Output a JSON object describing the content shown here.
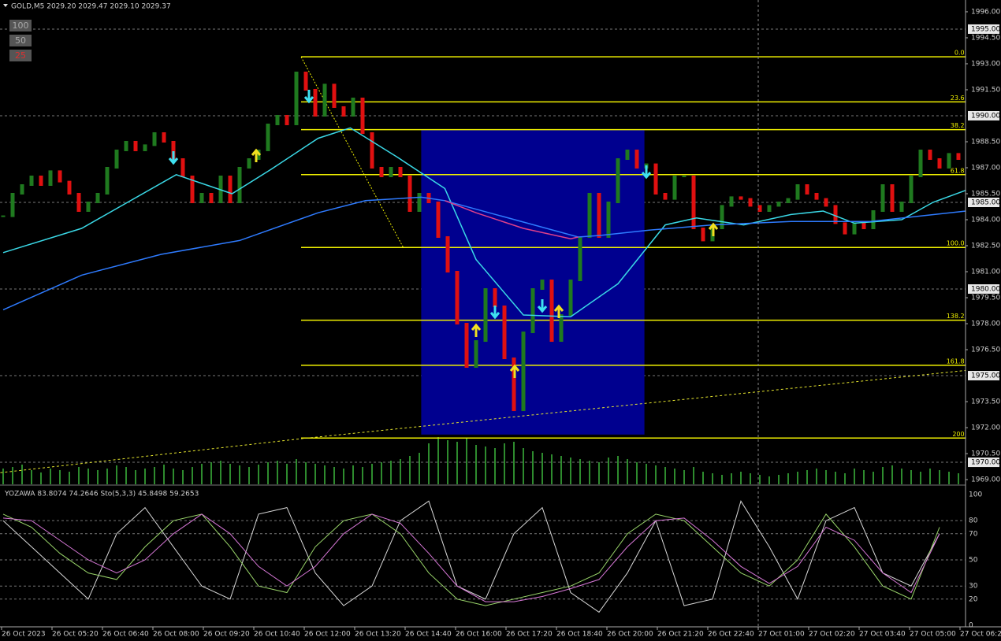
{
  "chart_data": {
    "type": "bar",
    "title": "GOLD,M5  2029.20 2029.47 2029.10 2029.37",
    "buttons": [
      "100",
      "50",
      "25"
    ],
    "ylim": [
      1968.73,
      1996.68
    ],
    "yticks": [
      {
        "value": 1996,
        "label": "1996.00"
      },
      {
        "value": 1994.5,
        "label": "1994.50"
      },
      {
        "value": 1993,
        "label": "1993.00"
      },
      {
        "value": 1991.5,
        "label": "1991.50"
      },
      {
        "value": 1988.5,
        "label": "1988.50"
      },
      {
        "value": 1987,
        "label": "1987.00"
      },
      {
        "value": 1985.5,
        "label": "1985.50"
      },
      {
        "value": 1984,
        "label": "1984.00"
      },
      {
        "value": 1982.5,
        "label": "1982.50"
      },
      {
        "value": 1981,
        "label": "1981.00"
      },
      {
        "value": 1979.5,
        "label": "1979.50"
      },
      {
        "value": 1978,
        "label": "1978.00"
      },
      {
        "value": 1976.5,
        "label": "1976.50"
      },
      {
        "value": 1973.5,
        "label": "1973.50"
      },
      {
        "value": 1972,
        "label": "1972.00"
      },
      {
        "value": 1970.5,
        "label": "1970.50"
      },
      {
        "value": 1969,
        "label": "1969.00"
      }
    ],
    "grid": [
      {
        "value": 1995,
        "label": "1995.00"
      },
      {
        "value": 1990,
        "label": "1990.00"
      },
      {
        "value": 1985,
        "label": "1985.00"
      },
      {
        "value": 1980,
        "label": "1980.00"
      },
      {
        "value": 1975,
        "label": "1975.00"
      },
      {
        "value": 1970,
        "label": "1970.00"
      }
    ],
    "xticks": [
      "26 Oct 2023",
      "26 Oct 05:20",
      "26 Oct 06:40",
      "26 Oct 08:00",
      "26 Oct 09:20",
      "26 Oct 10:40",
      "26 Oct 12:00",
      "26 Oct 13:20",
      "26 Oct 14:40",
      "26 Oct 16:00",
      "26 Oct 17:20",
      "26 Oct 18:40",
      "26 Oct 20:00",
      "26 Oct 21:20",
      "26 Oct 22:40",
      "27 Oct 01:00",
      "27 Oct 02:20",
      "27 Oct 03:40",
      "27 Oct 05:00",
      "27 Oct 06:20"
    ],
    "up_color": "#1f7a1f",
    "down_color": "#e01010",
    "values": [
      1984.2,
      1985.5,
      1986,
      1986.5,
      1986,
      1986.8,
      1986.2,
      1985.5,
      1984.5,
      1985,
      1985.5,
      1987,
      1988,
      1988.5,
      1988,
      1988.3,
      1989,
      1988.5,
      1987.5,
      1986.5,
      1985,
      1985.5,
      1985,
      1986.5,
      1985,
      1987,
      1987.5,
      1988,
      1989.5,
      1990,
      1989.5,
      1992.5,
      1991.5,
      1990,
      1991.8,
      1990.5,
      1990,
      1991,
      1989,
      1987,
      1986.5,
      1987,
      1986.5,
      1984.5,
      1985.5,
      1985,
      1983,
      1981,
      1978,
      1975.5,
      1977,
      1980,
      1979,
      1976,
      1973,
      1977.5,
      1980,
      1980.5,
      1977,
      1978.5,
      1980.5,
      1983,
      1985.5,
      1983,
      1985,
      1987.5,
      1988,
      1987,
      1987.2,
      1985.5,
      1985.2,
      1986.5,
      1986.5,
      1983.5,
      1982.8,
      1983.5,
      1984.8,
      1985.3,
      1985.2,
      1984.8,
      1984.5,
      1984.8,
      1985,
      1985.2,
      1986,
      1985.5,
      1985.2,
      1984.8,
      1983.8,
      1983.2,
      1983.8,
      1983.5,
      1984.5,
      1986,
      1984.5,
      1985,
      1986.5,
      1988,
      1987.5,
      1987,
      1987.8,
      1987.5
    ],
    "volume": [
      20,
      22,
      25,
      18,
      15,
      20,
      18,
      16,
      22,
      20,
      18,
      20,
      24,
      22,
      18,
      20,
      22,
      25,
      20,
      18,
      22,
      26,
      28,
      30,
      26,
      24,
      22,
      25,
      28,
      30,
      26,
      32,
      28,
      26,
      24,
      22,
      20,
      24,
      22,
      26,
      28,
      30,
      32,
      36,
      40,
      52,
      60,
      56,
      54,
      58,
      50,
      48,
      46,
      52,
      54,
      46,
      42,
      40,
      38,
      36,
      34,
      32,
      30,
      28,
      34,
      36,
      32,
      28,
      26,
      24,
      22,
      20,
      18,
      22,
      16,
      14,
      12,
      14,
      16,
      14,
      12,
      10,
      12,
      14,
      16,
      18,
      20,
      18,
      16,
      14,
      20,
      18,
      16,
      22,
      24,
      20,
      18,
      16,
      20,
      18,
      16,
      14
    ],
    "ma_series": [
      {
        "name": "fast",
        "color": "#3ad8e6",
        "x": [
          0,
          8.3,
          12.5,
          18.3,
          24.2,
          28.3,
          33.3,
          36.7,
          41.7,
          46.7,
          50,
          55,
          60,
          65,
          70,
          73.3,
          78.3,
          83.3,
          86.7,
          90,
          95,
          98.3,
          101.8
        ],
        "values": [
          1982.1,
          1983.5,
          1984.8,
          1986.6,
          1985.5,
          1986.9,
          1988.7,
          1989.3,
          1987.6,
          1985.8,
          1981.7,
          1978.5,
          1978.4,
          1980.3,
          1983.7,
          1984.1,
          1983.7,
          1984.3,
          1984.5,
          1983.8,
          1984,
          1985,
          1985.7
        ]
      },
      {
        "name": "slow",
        "color": "#2e7bff",
        "x": [
          0,
          8.3,
          16.7,
          25,
          33.3,
          38.3,
          44.2,
          46.7,
          60.8,
          63.3,
          68.3,
          75,
          83.3,
          91.7,
          101.8
        ],
        "values": [
          1978.8,
          1980.8,
          1982,
          1982.8,
          1984.4,
          1985.1,
          1985.3,
          1985.1,
          1983,
          1983.1,
          1983.4,
          1983.7,
          1983.9,
          1983.9,
          1984.5
        ]
      },
      {
        "name": "slow-down",
        "color": "#e0408a",
        "x": [
          46.7,
          50,
          55,
          60,
          60.8
        ],
        "values": [
          1985.1,
          1984.4,
          1983.5,
          1982.9,
          1983
        ]
      }
    ],
    "trend_line": {
      "x": [
        -0.3,
        31.5,
        101.8
      ],
      "values": [
        1969.4,
        1971.36,
        1975.3
      ],
      "color": "#e6e62e"
    },
    "fib_x": [
      31.5,
      101.8
    ],
    "fib_levels": [
      {
        "label": "0.0",
        "value": 1993.4
      },
      {
        "label": "23.6",
        "value": 1990.8
      },
      {
        "label": "38.2",
        "value": 1989.2
      },
      {
        "label": "61.8",
        "value": 1986.6
      },
      {
        "label": "100.0",
        "value": 1982.4
      },
      {
        "label": "138.2",
        "value": 1978.2
      },
      {
        "label": "161.8",
        "value": 1975.6
      },
      {
        "label": "200",
        "value": 1971.4
      }
    ],
    "rect": {
      "x": [
        44.2,
        67.8
      ],
      "values": [
        1971.6,
        1989.2
      ],
      "color": "#00008f"
    },
    "osc": {
      "title": "YOZAWA 83.8074 74.2646  Sto(5,3,3) 45.8498 59.2653",
      "ylim": [
        0,
        103
      ],
      "yticks": [
        0,
        20,
        30,
        50,
        70,
        80,
        100
      ],
      "x": [
        0,
        3,
        6,
        9,
        12,
        15,
        18,
        21,
        24,
        27,
        30,
        33,
        36,
        39,
        42,
        45,
        48,
        51,
        54,
        57,
        60,
        63,
        66,
        69,
        72,
        75,
        78,
        81,
        84,
        87,
        90,
        93,
        96,
        99
      ],
      "series": [
        {
          "name": "YOZAWA",
          "color": "#d8d8d8",
          "values": [
            80,
            60,
            40,
            20,
            70,
            90,
            60,
            30,
            20,
            85,
            90,
            40,
            15,
            30,
            80,
            95,
            30,
            20,
            70,
            90,
            25,
            10,
            40,
            80,
            15,
            20,
            95,
            60,
            20,
            80,
            90,
            40,
            30,
            70
          ]
        },
        {
          "name": "Sto",
          "color": "#9ad66a",
          "values": [
            85,
            75,
            55,
            40,
            35,
            60,
            80,
            85,
            60,
            30,
            25,
            60,
            80,
            85,
            70,
            40,
            20,
            15,
            20,
            25,
            30,
            40,
            70,
            85,
            80,
            60,
            40,
            30,
            50,
            85,
            60,
            30,
            20,
            75
          ]
        },
        {
          "name": "Signal",
          "color": "#d878d8",
          "values": [
            82,
            80,
            65,
            50,
            40,
            50,
            70,
            85,
            70,
            45,
            30,
            45,
            70,
            85,
            78,
            55,
            30,
            18,
            18,
            22,
            28,
            35,
            60,
            80,
            82,
            65,
            45,
            32,
            45,
            75,
            65,
            40,
            25,
            70
          ]
        }
      ]
    }
  }
}
